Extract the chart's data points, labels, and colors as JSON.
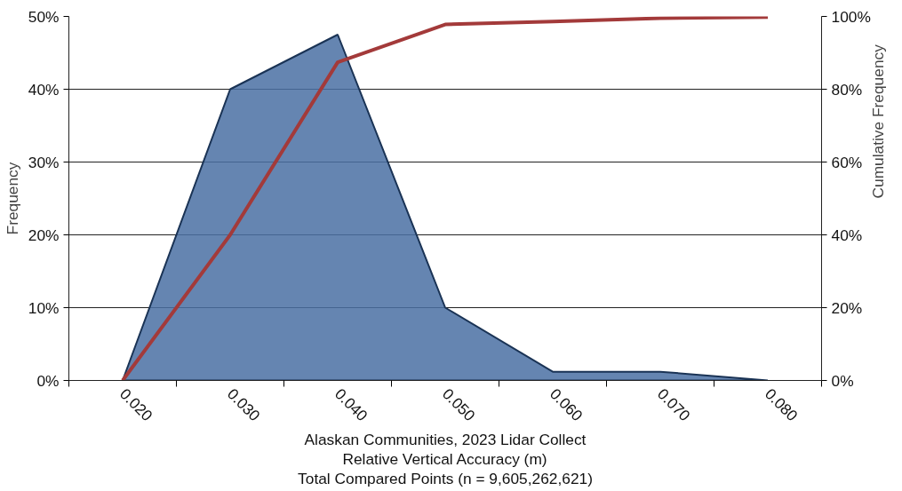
{
  "chart_data": {
    "type": "area",
    "title": "Alaskan Communities, 2023 Lidar Collect",
    "xlabel": "Relative Vertical Accuracy (m)",
    "ylabel": "Frequency",
    "y2label": "Cumulative Frequency",
    "annotations": [
      "Total Compared Points (n = 9,605,262,621)"
    ],
    "categories": [
      "0.020",
      "0.030",
      "0.040",
      "0.050",
      "0.060",
      "0.070",
      "0.080"
    ],
    "series": [
      {
        "color": "#4a70a3",
        "values": [
          0,
          40,
          47.5,
          10,
          1.2,
          1.2,
          0
        ]
      },
      {
        "type": "line",
        "axis": "y2",
        "color": "#a33a3a",
        "values": [
          0,
          40,
          87.4,
          97.8,
          98.6,
          99.5,
          99.8
        ]
      }
    ],
    "ylim": [
      0,
      50
    ],
    "yticks": [
      {
        "value": 0,
        "label": "0%"
      },
      {
        "value": 10,
        "label": "10%"
      },
      {
        "value": 20,
        "label": "20%"
      },
      {
        "value": 30,
        "label": "30%"
      },
      {
        "value": 40,
        "label": "40%"
      },
      {
        "value": 50,
        "label": "50%"
      }
    ],
    "y2lim": [
      0,
      100
    ],
    "y2ticks": [
      {
        "value": 0,
        "label": "0%"
      },
      {
        "value": 20,
        "label": "20%"
      },
      {
        "value": 40,
        "label": "40%"
      },
      {
        "value": 60,
        "label": "60%"
      },
      {
        "value": 80,
        "label": "80%"
      },
      {
        "value": 100,
        "label": "100%"
      }
    ],
    "grid": "y"
  }
}
